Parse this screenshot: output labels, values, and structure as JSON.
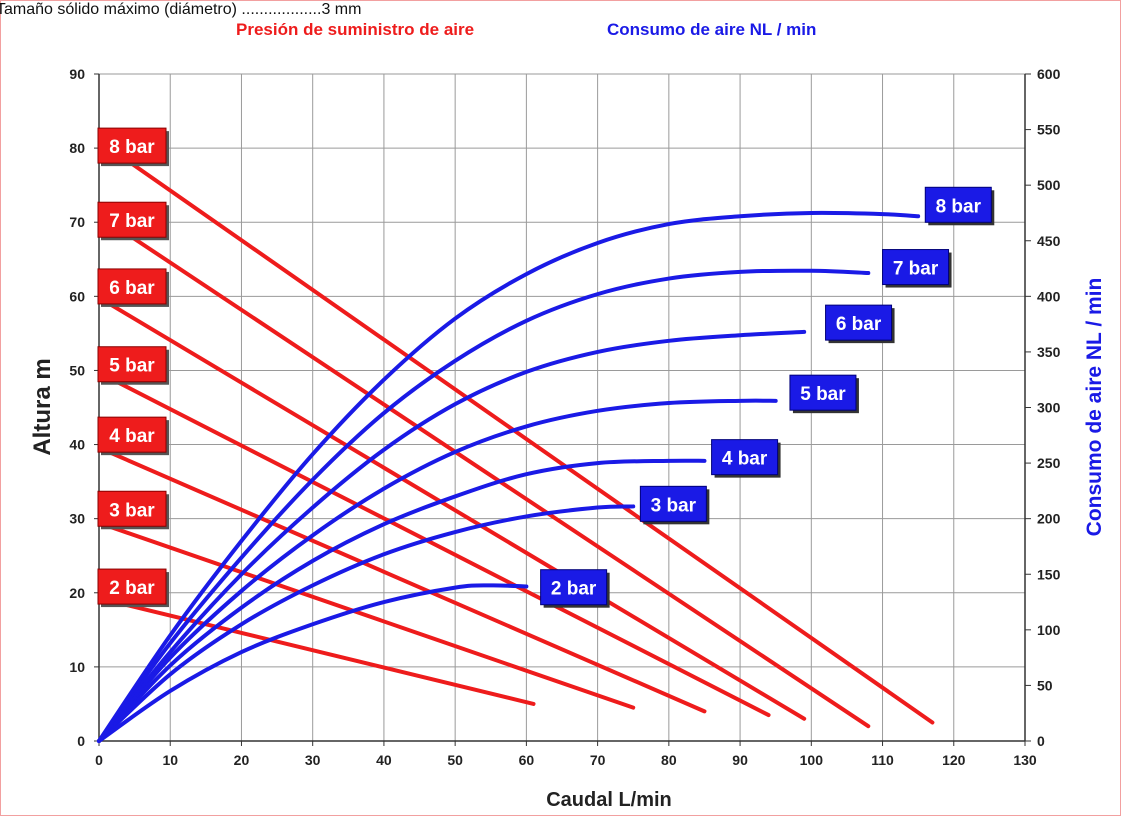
{
  "caption": "Tamaño sólido máximo (diámetro) ..................3 mm",
  "colors": {
    "pressure": "#ee1c1c",
    "consumption": "#1a1ae6",
    "grid": "#9a9a9a"
  },
  "chart_data": {
    "type": "line",
    "legend": [
      "Presión de suministro de aire",
      "Consumo de aire NL / min"
    ],
    "xlabel": "Caudal L/min",
    "ylabel": "Altura m",
    "y2label": "Consumo de aire NL / min",
    "xlim": [
      0,
      130
    ],
    "ylim": [
      0,
      90
    ],
    "y2lim": [
      0,
      600
    ],
    "x_ticks": [
      0,
      10,
      20,
      30,
      40,
      50,
      60,
      70,
      80,
      90,
      100,
      110,
      120,
      130
    ],
    "y_ticks": [
      0,
      10,
      20,
      30,
      40,
      50,
      60,
      70,
      80,
      90
    ],
    "y2_ticks": [
      0,
      50,
      100,
      150,
      200,
      250,
      300,
      350,
      400,
      450,
      500,
      550,
      600
    ],
    "grid": true,
    "pressure_series": [
      {
        "name": "2 bar",
        "points": [
          [
            0,
            19
          ],
          [
            61,
            5
          ]
        ]
      },
      {
        "name": "3 bar",
        "points": [
          [
            0,
            29
          ],
          [
            75,
            4.5
          ]
        ]
      },
      {
        "name": "4 bar",
        "points": [
          [
            0,
            39
          ],
          [
            85,
            4
          ]
        ]
      },
      {
        "name": "5 bar",
        "points": [
          [
            0,
            49
          ],
          [
            94,
            3.5
          ]
        ]
      },
      {
        "name": "6 bar",
        "points": [
          [
            0,
            59
          ],
          [
            99,
            3
          ]
        ]
      },
      {
        "name": "7 bar",
        "points": [
          [
            0,
            70
          ],
          [
            108,
            2
          ]
        ]
      },
      {
        "name": "8 bar",
        "points": [
          [
            0,
            80
          ],
          [
            117,
            2.5
          ]
        ]
      }
    ],
    "consumption_series": [
      {
        "name": "2 bar",
        "points": [
          [
            0,
            0
          ],
          [
            10,
            45
          ],
          [
            20,
            80
          ],
          [
            30,
            105
          ],
          [
            40,
            125
          ],
          [
            50,
            138
          ],
          [
            55,
            140
          ],
          [
            60,
            139
          ]
        ]
      },
      {
        "name": "3 bar",
        "points": [
          [
            0,
            0
          ],
          [
            10,
            60
          ],
          [
            20,
            105
          ],
          [
            30,
            140
          ],
          [
            40,
            168
          ],
          [
            50,
            188
          ],
          [
            60,
            202
          ],
          [
            70,
            210
          ],
          [
            75,
            211
          ]
        ]
      },
      {
        "name": "4 bar",
        "points": [
          [
            0,
            0
          ],
          [
            10,
            68
          ],
          [
            20,
            120
          ],
          [
            30,
            162
          ],
          [
            40,
            195
          ],
          [
            50,
            220
          ],
          [
            60,
            240
          ],
          [
            70,
            250
          ],
          [
            80,
            252
          ],
          [
            85,
            252
          ]
        ]
      },
      {
        "name": "5 bar",
        "points": [
          [
            0,
            0
          ],
          [
            10,
            75
          ],
          [
            20,
            135
          ],
          [
            30,
            185
          ],
          [
            40,
            227
          ],
          [
            50,
            260
          ],
          [
            60,
            283
          ],
          [
            70,
            297
          ],
          [
            80,
            304
          ],
          [
            90,
            306
          ],
          [
            95,
            306
          ]
        ]
      },
      {
        "name": "6 bar",
        "points": [
          [
            0,
            0
          ],
          [
            10,
            80
          ],
          [
            20,
            150
          ],
          [
            30,
            210
          ],
          [
            40,
            262
          ],
          [
            50,
            303
          ],
          [
            60,
            332
          ],
          [
            70,
            350
          ],
          [
            80,
            360
          ],
          [
            90,
            365
          ],
          [
            99,
            368
          ]
        ]
      },
      {
        "name": "7 bar",
        "points": [
          [
            0,
            0
          ],
          [
            10,
            88
          ],
          [
            20,
            165
          ],
          [
            30,
            235
          ],
          [
            40,
            295
          ],
          [
            50,
            342
          ],
          [
            60,
            378
          ],
          [
            70,
            402
          ],
          [
            80,
            416
          ],
          [
            90,
            422
          ],
          [
            100,
            423
          ],
          [
            108,
            421
          ]
        ]
      },
      {
        "name": "8 bar",
        "points": [
          [
            0,
            0
          ],
          [
            10,
            95
          ],
          [
            20,
            180
          ],
          [
            30,
            258
          ],
          [
            40,
            325
          ],
          [
            50,
            380
          ],
          [
            60,
            420
          ],
          [
            70,
            448
          ],
          [
            80,
            465
          ],
          [
            90,
            472
          ],
          [
            100,
            475
          ],
          [
            110,
            474
          ],
          [
            115,
            472
          ]
        ]
      }
    ],
    "pressure_labels": [
      {
        "text": "8 bar",
        "y": 80
      },
      {
        "text": "7 bar",
        "y": 70
      },
      {
        "text": "6 bar",
        "y": 61
      },
      {
        "text": "5 bar",
        "y": 50.5
      },
      {
        "text": "4 bar",
        "y": 41
      },
      {
        "text": "3 bar",
        "y": 31
      },
      {
        "text": "2 bar",
        "y": 20.5
      }
    ],
    "consumption_labels": [
      {
        "text": "8 bar",
        "x": 116,
        "y2": 481
      },
      {
        "text": "7 bar",
        "x": 110,
        "y2": 425
      },
      {
        "text": "6 bar",
        "x": 102,
        "y2": 375
      },
      {
        "text": "5 bar",
        "x": 97,
        "y2": 312
      },
      {
        "text": "4 bar",
        "x": 86,
        "y2": 254
      },
      {
        "text": "3 bar",
        "x": 76,
        "y2": 212
      },
      {
        "text": "2 bar",
        "x": 62,
        "y2": 137
      }
    ]
  }
}
